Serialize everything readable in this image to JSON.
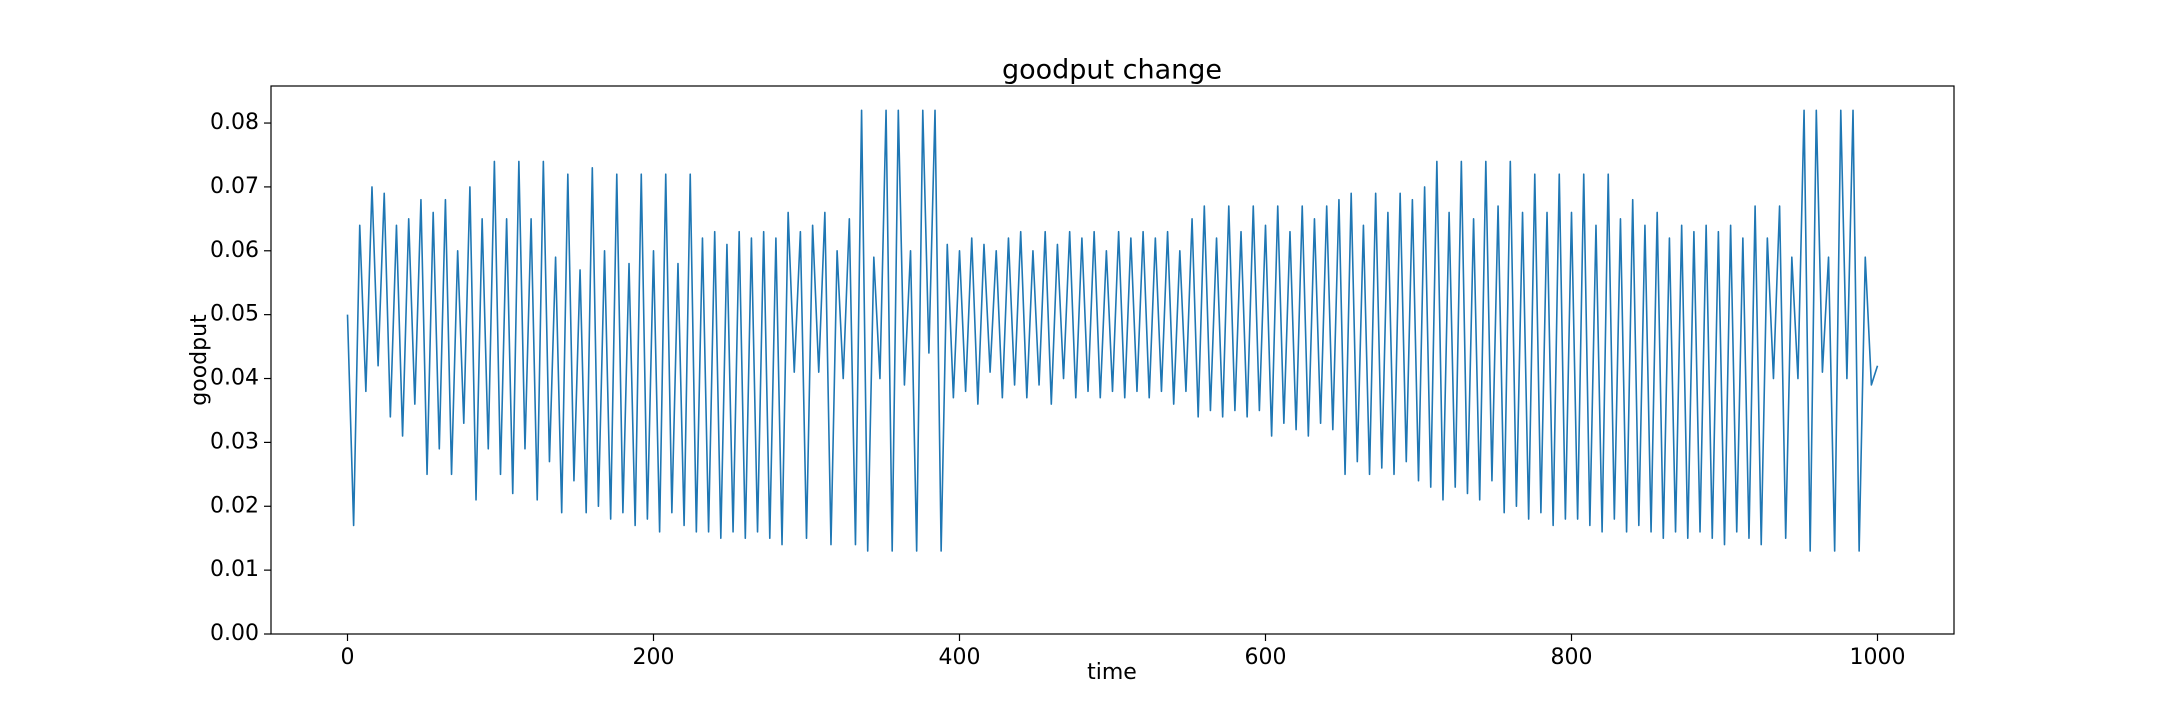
{
  "chart_data": {
    "type": "line",
    "title": "goodput change",
    "x_label": "time",
    "y_label": "goodput",
    "xlim": [
      -50,
      1050
    ],
    "xticks": [
      0,
      200,
      400,
      600,
      800,
      1000
    ],
    "ylim": [
      0,
      0.0858
    ],
    "yticks": [
      {
        "value": 0,
        "label": "0.00"
      },
      {
        "value": 0.01,
        "label": "0.01"
      },
      {
        "value": 0.02,
        "label": "0.02"
      },
      {
        "value": 0.03,
        "label": "0.03"
      },
      {
        "value": 0.04,
        "label": "0.04"
      },
      {
        "value": 0.05,
        "label": "0.05"
      },
      {
        "value": 0.06,
        "label": "0.06"
      },
      {
        "value": 0.07,
        "label": "0.07"
      },
      {
        "value": 0.08,
        "label": "0.08"
      }
    ],
    "grid": false,
    "x": [
      0,
      4,
      8,
      12,
      16,
      20,
      24,
      28,
      32,
      36,
      40,
      44,
      48,
      52,
      56,
      60,
      64,
      68,
      72,
      76,
      80,
      84,
      88,
      92,
      96,
      100,
      104,
      108,
      112,
      116,
      120,
      124,
      128,
      132,
      136,
      140,
      144,
      148,
      152,
      156,
      160,
      164,
      168,
      172,
      176,
      180,
      184,
      188,
      192,
      196,
      200,
      204,
      208,
      212,
      216,
      220,
      224,
      228,
      232,
      236,
      240,
      244,
      248,
      252,
      256,
      260,
      264,
      268,
      272,
      276,
      280,
      284,
      288,
      292,
      296,
      300,
      304,
      308,
      312,
      316,
      320,
      324,
      328,
      332,
      336,
      340,
      344,
      348,
      352,
      356,
      360,
      364,
      368,
      372,
      376,
      380,
      384,
      388,
      392,
      396,
      400,
      404,
      408,
      412,
      416,
      420,
      424,
      428,
      432,
      436,
      440,
      444,
      448,
      452,
      456,
      460,
      464,
      468,
      472,
      476,
      480,
      484,
      488,
      492,
      496,
      500,
      504,
      508,
      512,
      516,
      520,
      524,
      528,
      532,
      536,
      540,
      544,
      548,
      552,
      556,
      560,
      564,
      568,
      572,
      576,
      580,
      584,
      588,
      592,
      596,
      600,
      604,
      608,
      612,
      616,
      620,
      624,
      628,
      632,
      636,
      640,
      644,
      648,
      652,
      656,
      660,
      664,
      668,
      672,
      676,
      680,
      684,
      688,
      692,
      696,
      700,
      704,
      708,
      712,
      716,
      720,
      724,
      728,
      732,
      736,
      740,
      744,
      748,
      752,
      756,
      760,
      764,
      768,
      772,
      776,
      780,
      784,
      788,
      792,
      796,
      800,
      804,
      808,
      812,
      816,
      820,
      824,
      828,
      832,
      836,
      840,
      844,
      848,
      852,
      856,
      860,
      864,
      868,
      872,
      876,
      880,
      884,
      888,
      892,
      896,
      900,
      904,
      908,
      912,
      916,
      920,
      924,
      928,
      932,
      936,
      940,
      944,
      948,
      952,
      956,
      960,
      964,
      968,
      972,
      976,
      980,
      984,
      988,
      992,
      996,
      1000
    ],
    "series": [
      {
        "name": "goodput",
        "color": "#1f77b4",
        "values": [
          0.05,
          0.017,
          0.064,
          0.038,
          0.07,
          0.042,
          0.069,
          0.034,
          0.064,
          0.031,
          0.065,
          0.036,
          0.068,
          0.025,
          0.066,
          0.029,
          0.068,
          0.025,
          0.06,
          0.033,
          0.07,
          0.021,
          0.065,
          0.029,
          0.074,
          0.025,
          0.065,
          0.022,
          0.074,
          0.029,
          0.065,
          0.021,
          0.074,
          0.027,
          0.059,
          0.019,
          0.072,
          0.024,
          0.057,
          0.019,
          0.073,
          0.02,
          0.06,
          0.018,
          0.072,
          0.019,
          0.058,
          0.017,
          0.072,
          0.018,
          0.06,
          0.016,
          0.072,
          0.019,
          0.058,
          0.017,
          0.072,
          0.016,
          0.062,
          0.016,
          0.063,
          0.015,
          0.061,
          0.016,
          0.063,
          0.015,
          0.062,
          0.016,
          0.063,
          0.015,
          0.062,
          0.014,
          0.066,
          0.041,
          0.063,
          0.015,
          0.064,
          0.041,
          0.066,
          0.014,
          0.06,
          0.04,
          0.065,
          0.014,
          0.082,
          0.013,
          0.059,
          0.04,
          0.082,
          0.013,
          0.082,
          0.039,
          0.06,
          0.013,
          0.082,
          0.044,
          0.082,
          0.013,
          0.061,
          0.037,
          0.06,
          0.038,
          0.062,
          0.036,
          0.061,
          0.041,
          0.06,
          0.037,
          0.062,
          0.039,
          0.063,
          0.037,
          0.06,
          0.039,
          0.063,
          0.036,
          0.061,
          0.04,
          0.063,
          0.037,
          0.062,
          0.038,
          0.063,
          0.037,
          0.06,
          0.038,
          0.063,
          0.037,
          0.062,
          0.038,
          0.063,
          0.037,
          0.062,
          0.038,
          0.063,
          0.036,
          0.06,
          0.038,
          0.065,
          0.034,
          0.067,
          0.035,
          0.062,
          0.034,
          0.067,
          0.035,
          0.063,
          0.034,
          0.067,
          0.035,
          0.064,
          0.031,
          0.067,
          0.033,
          0.063,
          0.032,
          0.067,
          0.031,
          0.065,
          0.033,
          0.067,
          0.032,
          0.068,
          0.025,
          0.069,
          0.027,
          0.064,
          0.025,
          0.069,
          0.026,
          0.066,
          0.025,
          0.069,
          0.027,
          0.068,
          0.024,
          0.07,
          0.023,
          0.074,
          0.021,
          0.066,
          0.023,
          0.074,
          0.022,
          0.065,
          0.021,
          0.074,
          0.024,
          0.067,
          0.019,
          0.074,
          0.02,
          0.066,
          0.018,
          0.072,
          0.019,
          0.066,
          0.017,
          0.072,
          0.018,
          0.066,
          0.018,
          0.072,
          0.017,
          0.064,
          0.016,
          0.072,
          0.018,
          0.065,
          0.016,
          0.068,
          0.017,
          0.064,
          0.016,
          0.066,
          0.015,
          0.062,
          0.016,
          0.064,
          0.015,
          0.063,
          0.016,
          0.064,
          0.015,
          0.063,
          0.014,
          0.064,
          0.016,
          0.062,
          0.015,
          0.067,
          0.014,
          0.062,
          0.04,
          0.067,
          0.015,
          0.059,
          0.04,
          0.082,
          0.013,
          0.082,
          0.041,
          0.059,
          0.013,
          0.082,
          0.04,
          0.082,
          0.013,
          0.059,
          0.039,
          0.042
        ]
      }
    ]
  }
}
